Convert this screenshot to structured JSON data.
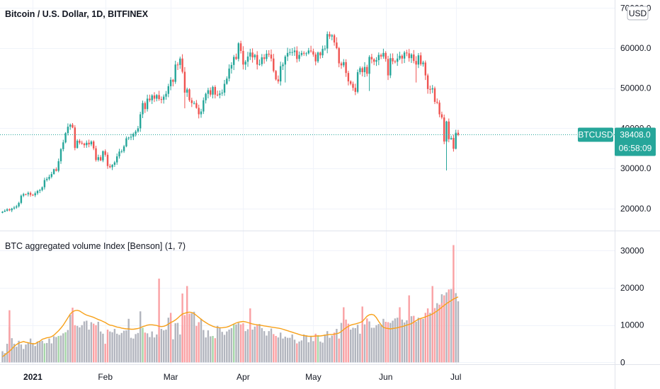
{
  "chart_data": {
    "type": "candlestick",
    "title": "Bitcoin / U.S. Dollar, 1D, BITFINEX",
    "symbol_tag": "BTCUSD",
    "currency": "USD",
    "last_price": "38408.0",
    "countdown": "06:58:09",
    "price_axis": {
      "ylim": [
        14500,
        72000
      ],
      "ticks": [
        20000,
        30000,
        40000,
        50000,
        60000,
        70000
      ],
      "tick_labels": [
        "20000.0",
        "30000.0",
        "40000.0",
        "50000.0",
        "60000.0",
        "70000.0"
      ]
    },
    "x_axis": {
      "start_date": "2020-12-19",
      "end_date": "2021-07-15",
      "month_labels": [
        {
          "label": "2021",
          "day_index": 13,
          "bold": true
        },
        {
          "label": "Feb",
          "day_index": 44,
          "bold": false
        },
        {
          "label": "Mar",
          "day_index": 72,
          "bold": false
        },
        {
          "label": "Apr",
          "day_index": 103,
          "bold": false
        },
        {
          "label": "May",
          "day_index": 133,
          "bold": false
        },
        {
          "label": "Jun",
          "day_index": 164,
          "bold": false
        },
        {
          "label": "Jul",
          "day_index": 194,
          "bold": false
        }
      ]
    },
    "closes": [
      19200,
      19450,
      19800,
      19550,
      20000,
      20250,
      20550,
      21400,
      23200,
      23600,
      23550,
      23900,
      23400,
      23300,
      23800,
      24400,
      24600,
      25300,
      27100,
      27400,
      27900,
      28600,
      29800,
      29400,
      31800,
      34800,
      36500,
      38800,
      40400,
      40900,
      40200,
      35100,
      36900,
      36400,
      36200,
      35800,
      36400,
      36000,
      36700,
      35000,
      32100,
      32800,
      32000,
      34300,
      33400,
      30600,
      30300,
      30900,
      31500,
      33000,
      34200,
      34300,
      35500,
      37500,
      37700,
      37900,
      38600,
      39200,
      40000,
      43500,
      46300,
      44800,
      47400,
      47000,
      48200,
      47400,
      48300,
      47300,
      47100,
      47900,
      48600,
      50500,
      52100,
      51600,
      55900,
      55800,
      57400,
      54100,
      48900,
      49700,
      47000,
      46300,
      46300,
      45100,
      43500,
      44200,
      47000,
      48600,
      49500,
      48400,
      50300,
      48400,
      48300,
      48700,
      48900,
      51100,
      52400,
      54900,
      55800,
      57800,
      57300,
      61200,
      59300,
      55900,
      56600,
      57900,
      58900,
      57700,
      58300,
      55900,
      56000,
      57700,
      57300,
      58600,
      58400,
      57400,
      54300,
      52200,
      51700,
      55500,
      55900,
      57900,
      58800,
      59000,
      59000,
      59400,
      57300,
      58300,
      58800,
      58700,
      58700,
      59400,
      59200,
      58400,
      56700,
      58900,
      58200,
      59800,
      59900,
      63500,
      62900,
      63200,
      61400,
      60000,
      56200,
      55700,
      56500,
      53800,
      51700,
      51100,
      50100,
      49100,
      54000,
      55000,
      54000,
      55300,
      53600,
      57800,
      57200,
      56600,
      57000,
      58300,
      57900,
      58800,
      57300,
      53200,
      57500,
      56700,
      56600,
      57400,
      58100,
      57400,
      58900,
      58700,
      57500,
      58400,
      56800,
      55900,
      58200,
      56000,
      56400,
      53200,
      49800,
      49700,
      50000,
      46600,
      46400,
      43500,
      42700,
      36700,
      41700,
      37300,
      37600,
      34900,
      38900,
      38408
    ],
    "volume": {
      "title": "BTC aggregated volume Index [Benson] (1, 7)",
      "ylim": [
        -500,
        33500
      ],
      "ticks": [
        0,
        10000,
        20000,
        30000
      ],
      "tick_labels": [
        "0",
        "10000",
        "20000",
        "30000"
      ],
      "values": [
        3000,
        2500,
        5000,
        9500,
        6500,
        5000,
        4200,
        5800,
        4800,
        3600,
        4800,
        5200,
        6400,
        5200,
        4400,
        5600,
        5600,
        5800,
        5100,
        5200,
        6400,
        5100,
        7000,
        6800,
        7100,
        7200,
        7800,
        8100,
        8700,
        12800,
        13600,
        10000,
        9800,
        9400,
        10000,
        11000,
        11200,
        8800,
        10800,
        10400,
        10000,
        10900,
        8300,
        7700,
        5000,
        8800,
        8300,
        8100,
        9000,
        7700,
        7400,
        7900,
        8500,
        8600,
        11700,
        6600,
        6400,
        7600,
        7900,
        13700,
        9300,
        8000,
        7800,
        6800,
        8300,
        6700,
        7500,
        6800,
        9000,
        8600,
        8800,
        12000,
        12200,
        6200,
        10500,
        10600,
        7500,
        9900,
        12700,
        12100,
        13100,
        13200,
        13600,
        9800,
        10800,
        11700,
        8700,
        6700,
        8600,
        7000,
        7100,
        6500,
        9800,
        9200,
        8200,
        7400,
        8300,
        8800,
        9200,
        10300,
        10200,
        10600,
        10200,
        10500,
        8400,
        8900,
        7200,
        8800,
        9600,
        10000,
        10300,
        9200,
        8400,
        7200,
        8400,
        9100,
        7600,
        7100,
        6700,
        8000,
        6400,
        6900,
        6600,
        6600,
        7500,
        6100,
        5100,
        5600,
        5900,
        7500,
        7300,
        5400,
        7000,
        5700,
        7700,
        7300,
        5600,
        5300,
        7500,
        8400,
        6600,
        7200,
        8000,
        9000,
        6400,
        10600,
        11700,
        11500,
        10400,
        8800,
        9300,
        9200,
        10100,
        7700,
        8600,
        10200,
        11800,
        11000,
        9300,
        9300,
        10000,
        10300,
        10100,
        11700,
        10900,
        10800,
        10600,
        11200,
        11800,
        12000,
        12000,
        11500,
        10700,
        11300,
        11400,
        12400,
        12500,
        10900,
        12000,
        11800,
        11700,
        13300,
        14500,
        13300,
        14400,
        14600,
        15900,
        15500,
        18300,
        18000,
        18800,
        19600,
        19700,
        20100,
        18600,
        16400
      ],
      "ma": [
        1500,
        2000,
        2500,
        3000,
        3600,
        4300,
        4800,
        5200,
        5400,
        5600,
        5400,
        5300,
        5100,
        5000,
        5000,
        5400,
        5700,
        6200,
        6400,
        6600,
        6700,
        6900,
        7300,
        7900,
        8500,
        9200,
        10000,
        11000,
        12000,
        13000,
        13600,
        13900,
        14000,
        13800,
        13400,
        13000,
        12700,
        12500,
        12300,
        12100,
        11800,
        11500,
        11300,
        11000,
        10700,
        10300,
        10000,
        9900,
        9700,
        9500,
        9400,
        9200,
        9100,
        9000,
        9000,
        8900,
        8900,
        9000,
        9100,
        9300,
        9600,
        9800,
        10000,
        10100,
        10100,
        10000,
        9900,
        9700,
        9600,
        9700,
        9900,
        10300,
        10700,
        11000,
        11400,
        11900,
        12500,
        13000,
        13200,
        13400,
        13500,
        13400,
        13100,
        12600,
        12100,
        11600,
        11100,
        10700,
        10300,
        10000,
        9700,
        9500,
        9400,
        9300,
        9300,
        9400,
        9500,
        9700,
        10000,
        10300,
        10600,
        10800,
        10900,
        11000,
        10900,
        10700,
        10500,
        10300,
        10200,
        10100,
        10000,
        9900,
        9800,
        9700,
        9600,
        9500,
        9400,
        9300,
        9200,
        9100,
        8900,
        8700,
        8500,
        8300,
        8100,
        7900,
        7700,
        7500,
        7300,
        7200,
        7100,
        7000,
        7000,
        7000,
        7100,
        7100,
        7100,
        7200,
        7300,
        7400,
        7500,
        7500,
        7600,
        7700,
        7900,
        8300,
        8800,
        9300,
        9700,
        10000,
        10200,
        10300,
        10500,
        10700,
        11000,
        11700,
        12400,
        12800,
        12900,
        12700,
        12000,
        11000,
        10100,
        9400,
        9200,
        9100,
        9000,
        9100,
        9200,
        9300,
        9500,
        9600,
        9800,
        10000,
        10200,
        10400,
        10800,
        11200,
        11600,
        11800,
        12000,
        12200,
        12500,
        12700,
        13000,
        13400,
        13800,
        14300,
        14800,
        15300,
        15800,
        16200,
        16600,
        17000,
        17300,
        17600
      ]
    }
  }
}
